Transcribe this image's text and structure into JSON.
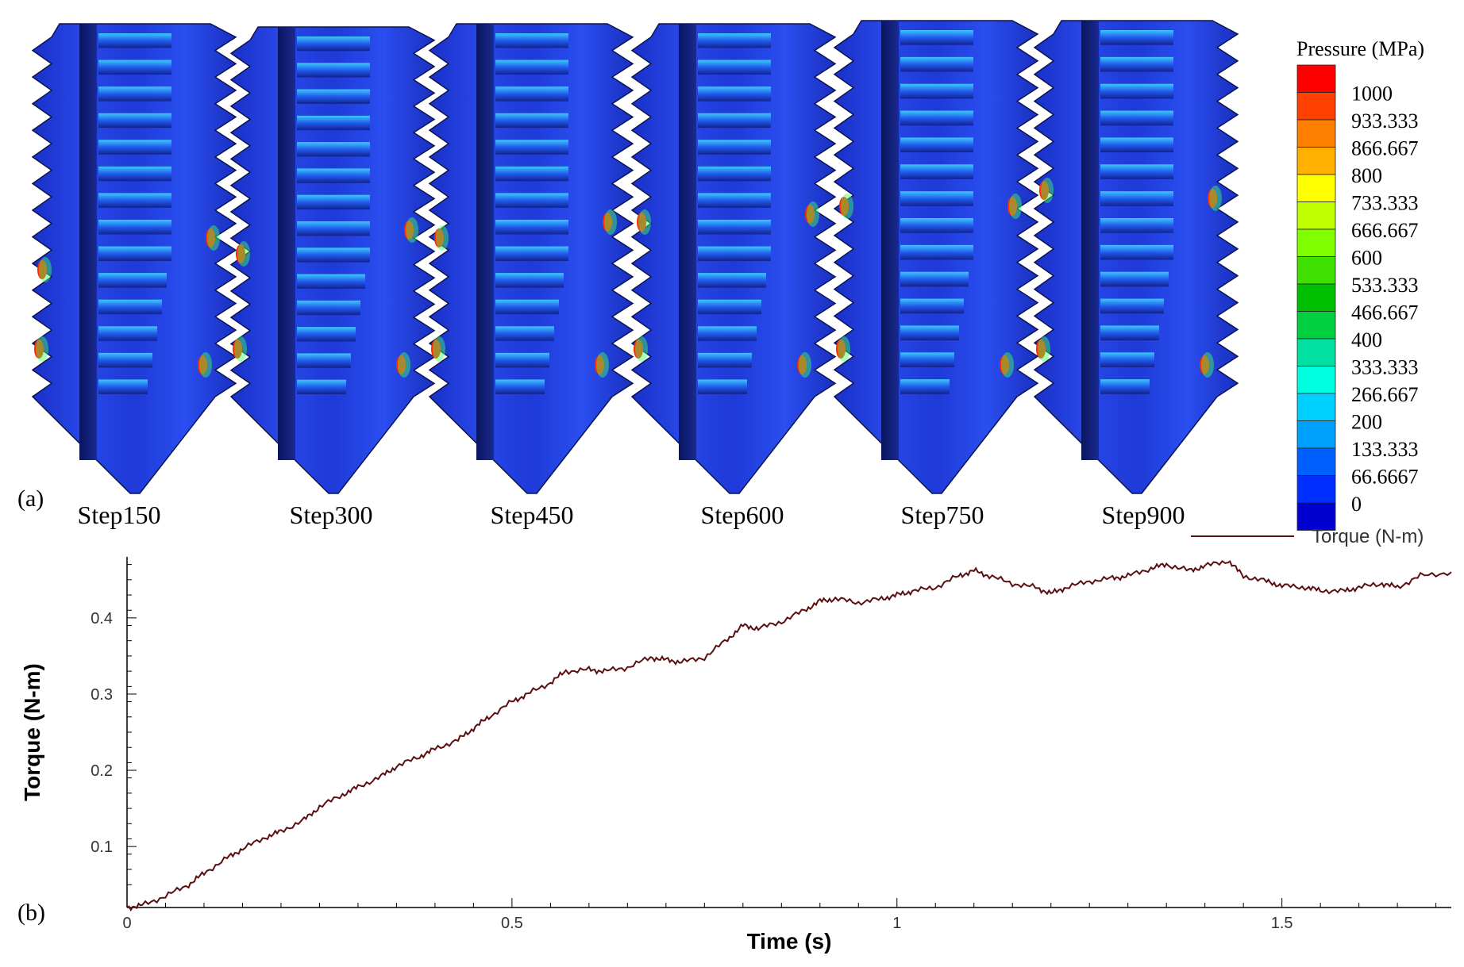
{
  "panels": {
    "a_label": "(a)",
    "b_label": "(b)",
    "steps": [
      "Step150",
      "Step300",
      "Step450",
      "Step600",
      "Step750",
      "Step900"
    ]
  },
  "contour_legend": {
    "title": "Pressure (MPa)",
    "levels": [
      "1000",
      "933.333",
      "866.667",
      "800",
      "733.333",
      "666.667",
      "600",
      "533.333",
      "466.667",
      "400",
      "333.333",
      "266.667",
      "200",
      "133.333",
      "66.6667",
      "0"
    ],
    "colors": [
      "#ff0000",
      "#ff4000",
      "#ff8000",
      "#ffb000",
      "#ffff00",
      "#c0ff00",
      "#80ff00",
      "#40e000",
      "#00c000",
      "#00d040",
      "#00e0a0",
      "#00ffe0",
      "#00d0ff",
      "#00a0ff",
      "#0060ff",
      "#0030ff",
      "#0000d0"
    ]
  },
  "chart_data": {
    "type": "line",
    "title": "",
    "xlabel": "Time (s)",
    "ylabel": "Torque (N-m)",
    "xlim": [
      0,
      1.72
    ],
    "ylim": [
      0.02,
      0.48
    ],
    "xticks": [
      "0",
      "0.5",
      "1",
      "1.5"
    ],
    "yticks": [
      "0.1",
      "0.2",
      "0.3",
      "0.4"
    ],
    "legend_position": "top-right",
    "series": [
      {
        "name": "Torque (N-m)",
        "color": "#5a1010",
        "x": [
          0,
          0.02,
          0.05,
          0.08,
          0.1,
          0.13,
          0.15,
          0.18,
          0.2,
          0.23,
          0.25,
          0.28,
          0.3,
          0.33,
          0.35,
          0.38,
          0.4,
          0.43,
          0.45,
          0.47,
          0.5,
          0.52,
          0.55,
          0.57,
          0.6,
          0.62,
          0.65,
          0.68,
          0.7,
          0.72,
          0.75,
          0.78,
          0.8,
          0.82,
          0.85,
          0.88,
          0.9,
          0.92,
          0.95,
          0.98,
          1.0,
          1.02,
          1.05,
          1.08,
          1.1,
          1.12,
          1.15,
          1.18,
          1.2,
          1.22,
          1.25,
          1.28,
          1.3,
          1.33,
          1.35,
          1.38,
          1.4,
          1.43,
          1.45,
          1.48,
          1.5,
          1.53,
          1.55,
          1.58,
          1.6,
          1.63,
          1.65,
          1.68,
          1.72
        ],
        "y": [
          0.02,
          0.023,
          0.035,
          0.05,
          0.065,
          0.085,
          0.097,
          0.112,
          0.12,
          0.135,
          0.152,
          0.168,
          0.178,
          0.192,
          0.205,
          0.218,
          0.228,
          0.24,
          0.255,
          0.27,
          0.29,
          0.3,
          0.315,
          0.33,
          0.332,
          0.33,
          0.335,
          0.348,
          0.345,
          0.342,
          0.348,
          0.372,
          0.39,
          0.386,
          0.395,
          0.41,
          0.422,
          0.425,
          0.42,
          0.425,
          0.43,
          0.435,
          0.44,
          0.455,
          0.462,
          0.455,
          0.445,
          0.44,
          0.432,
          0.44,
          0.448,
          0.452,
          0.455,
          0.465,
          0.47,
          0.462,
          0.468,
          0.475,
          0.455,
          0.448,
          0.442,
          0.44,
          0.436,
          0.435,
          0.44,
          0.445,
          0.44,
          0.455,
          0.46
        ]
      }
    ]
  }
}
